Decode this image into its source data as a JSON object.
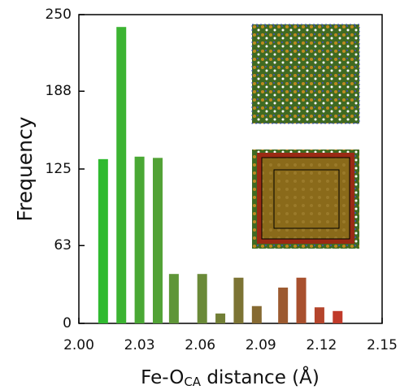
{
  "chart_data": {
    "type": "bar",
    "xlabel": [
      "Fe-O",
      "CA",
      " distance (Å)"
    ],
    "ylabel": "Frequency",
    "x": [
      2.012,
      2.021,
      2.03,
      2.039,
      2.047,
      2.061,
      2.07,
      2.079,
      2.088,
      2.101,
      2.11,
      2.119,
      2.128
    ],
    "values": [
      133,
      240,
      135,
      134,
      40,
      40,
      8,
      37,
      14,
      29,
      37,
      13,
      10
    ],
    "colors": [
      "#2fba2f",
      "#3cb432",
      "#4aa835",
      "#52a236",
      "#5f9638",
      "#6a8a38",
      "#727f36",
      "#7c7434",
      "#866a32",
      "#9c5a30",
      "#a8502e",
      "#b4452c",
      "#c03a2a"
    ],
    "xlim": [
      2.0,
      2.15
    ],
    "xticks": [
      {
        "value": 2.0,
        "label": "2.00"
      },
      2.03,
      2.06,
      2.09,
      2.12,
      2.15
    ],
    "ylim": [
      0,
      250
    ],
    "yticks": [
      0,
      63,
      125,
      188,
      250
    ]
  }
}
